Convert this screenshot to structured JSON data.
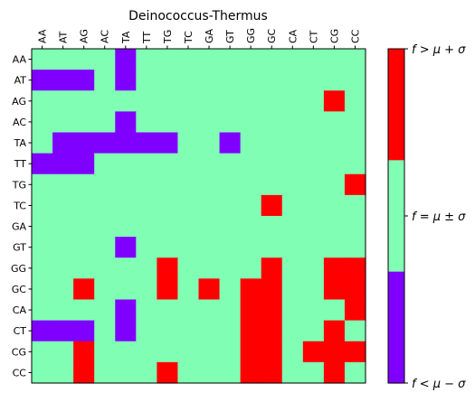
{
  "chart_data": {
    "type": "heatmap",
    "title": "Deinococcus-Thermus",
    "x_labels": [
      "AA",
      "AT",
      "AG",
      "AC",
      "TA",
      "TT",
      "TG",
      "TC",
      "GA",
      "GT",
      "GG",
      "GC",
      "CA",
      "CT",
      "CG",
      "CC"
    ],
    "y_labels": [
      "AA",
      "AT",
      "AG",
      "AC",
      "TA",
      "TT",
      "TG",
      "TC",
      "GA",
      "GT",
      "GG",
      "GC",
      "CA",
      "CT",
      "CG",
      "CC"
    ],
    "x_tick_position": "top",
    "x_tick_rotation_deg": 90,
    "grid": false,
    "levels": [
      {
        "value": -1,
        "color": "#8000ff",
        "label": "f < μ − σ"
      },
      {
        "value": 0,
        "color": "#80ffb4",
        "label": "f = μ ± σ"
      },
      {
        "value": 1,
        "color": "#ff0000",
        "label": "f > μ + σ"
      }
    ],
    "colorbar": {
      "placement": "right",
      "tick_labels_top_to_bottom": [
        "f > μ + σ",
        "f = μ ± σ",
        "f < μ − σ"
      ]
    },
    "values": [
      [
        0,
        0,
        0,
        0,
        -1,
        0,
        0,
        0,
        0,
        0,
        0,
        0,
        0,
        0,
        0,
        0
      ],
      [
        -1,
        -1,
        -1,
        0,
        -1,
        0,
        0,
        0,
        0,
        0,
        0,
        0,
        0,
        0,
        0,
        0
      ],
      [
        0,
        0,
        0,
        0,
        0,
        0,
        0,
        0,
        0,
        0,
        0,
        0,
        0,
        0,
        1,
        0
      ],
      [
        0,
        0,
        0,
        0,
        -1,
        0,
        0,
        0,
        0,
        0,
        0,
        0,
        0,
        0,
        0,
        0
      ],
      [
        0,
        -1,
        -1,
        -1,
        -1,
        -1,
        -1,
        0,
        0,
        -1,
        0,
        0,
        0,
        0,
        0,
        0
      ],
      [
        -1,
        -1,
        -1,
        0,
        0,
        0,
        0,
        0,
        0,
        0,
        0,
        0,
        0,
        0,
        0,
        0
      ],
      [
        0,
        0,
        0,
        0,
        0,
        0,
        0,
        0,
        0,
        0,
        0,
        0,
        0,
        0,
        0,
        1
      ],
      [
        0,
        0,
        0,
        0,
        0,
        0,
        0,
        0,
        0,
        0,
        0,
        1,
        0,
        0,
        0,
        0
      ],
      [
        0,
        0,
        0,
        0,
        0,
        0,
        0,
        0,
        0,
        0,
        0,
        0,
        0,
        0,
        0,
        0
      ],
      [
        0,
        0,
        0,
        0,
        -1,
        0,
        0,
        0,
        0,
        0,
        0,
        0,
        0,
        0,
        0,
        0
      ],
      [
        0,
        0,
        0,
        0,
        0,
        0,
        1,
        0,
        0,
        0,
        0,
        1,
        0,
        0,
        1,
        1
      ],
      [
        0,
        0,
        1,
        0,
        0,
        0,
        1,
        0,
        1,
        0,
        1,
        1,
        0,
        0,
        1,
        1
      ],
      [
        0,
        0,
        0,
        0,
        -1,
        0,
        0,
        0,
        0,
        0,
        1,
        1,
        0,
        0,
        0,
        1
      ],
      [
        -1,
        -1,
        -1,
        0,
        -1,
        0,
        0,
        0,
        0,
        0,
        1,
        1,
        0,
        0,
        1,
        0
      ],
      [
        0,
        0,
        1,
        0,
        0,
        0,
        0,
        0,
        0,
        0,
        1,
        1,
        0,
        1,
        1,
        1
      ],
      [
        0,
        0,
        1,
        0,
        0,
        0,
        1,
        0,
        0,
        0,
        1,
        1,
        0,
        0,
        1,
        0
      ]
    ]
  }
}
